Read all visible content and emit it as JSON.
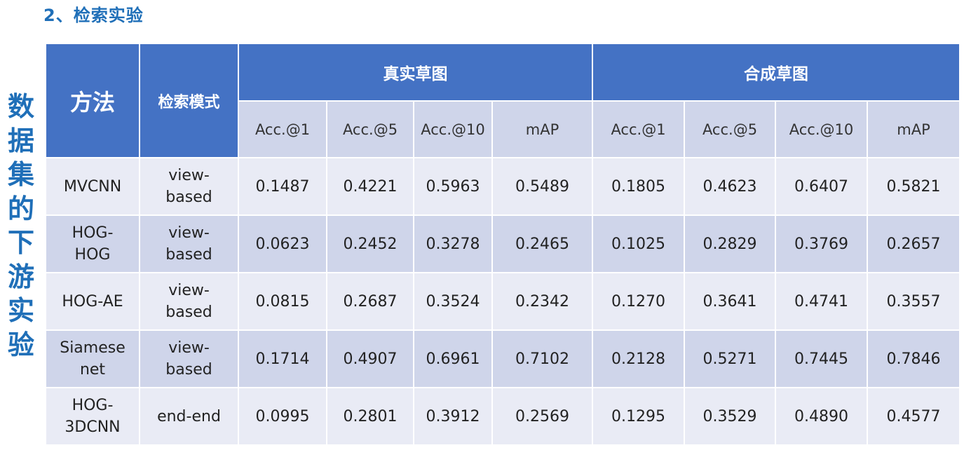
{
  "heading": "2、检索实验",
  "side_label": [
    "数",
    "据",
    "集",
    "的",
    "下",
    "游",
    "实",
    "验"
  ],
  "table": {
    "header": {
      "method": "方法",
      "mode": "检索模式",
      "groups": [
        "真实草图",
        "合成草图"
      ],
      "metrics": [
        "Acc.@1",
        "Acc.@5",
        "Acc.@10",
        "mAP",
        "Acc.@1",
        "Acc.@5",
        "Acc.@10",
        "mAP"
      ]
    },
    "rows": [
      {
        "method": [
          "MVCNN"
        ],
        "mode": [
          "view-",
          "based"
        ],
        "values": [
          "0.1487",
          "0.4221",
          "0.5963",
          "0.5489",
          "0.1805",
          "0.4623",
          "0.6407",
          "0.5821"
        ]
      },
      {
        "method": [
          "HOG-",
          "HOG"
        ],
        "mode": [
          "view-",
          "based"
        ],
        "values": [
          "0.0623",
          "0.2452",
          "0.3278",
          "0.2465",
          "0.1025",
          "0.2829",
          "0.3769",
          "0.2657"
        ]
      },
      {
        "method": [
          "HOG-AE"
        ],
        "mode": [
          "view-",
          "based"
        ],
        "values": [
          "0.0815",
          "0.2687",
          "0.3524",
          "0.2342",
          "0.1270",
          "0.3641",
          "0.4741",
          "0.3557"
        ]
      },
      {
        "method": [
          "Siamese",
          "net"
        ],
        "mode": [
          "view-",
          "based"
        ],
        "values": [
          "0.1714",
          "0.4907",
          "0.6961",
          "0.7102",
          "0.2128",
          "0.5271",
          "0.7445",
          "0.7846"
        ]
      },
      {
        "method": [
          "HOG-",
          "3DCNN"
        ],
        "mode": [
          "end-end"
        ],
        "values": [
          "0.0995",
          "0.2801",
          "0.3912",
          "0.2569",
          "0.1295",
          "0.3529",
          "0.4890",
          "0.4577"
        ]
      }
    ]
  }
}
